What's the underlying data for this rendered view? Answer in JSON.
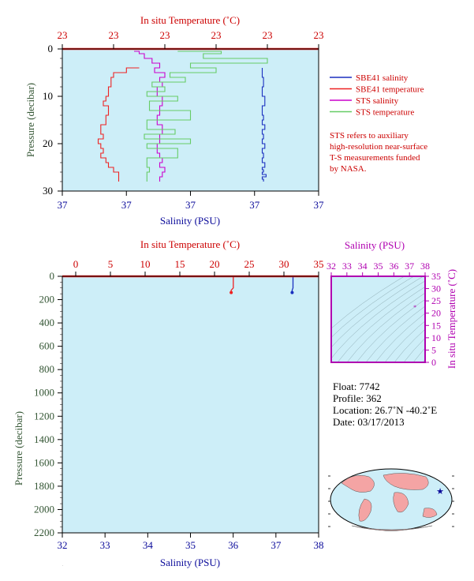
{
  "colors": {
    "panel_bg": "#cdeef8",
    "salinity": "#1a2fbf",
    "temperature": "#ee2222",
    "sts_salinity": "#cc00cc",
    "sts_temperature": "#66cc66",
    "temp_axis": "#cc0000",
    "sal_axis": "#0a0a9a",
    "pressure_axis": "#335533",
    "ts_axis": "#b000b0"
  },
  "top_panel": {
    "title": "In situ Temperature (˚C)",
    "xlabel": "Salinity (PSU)",
    "ylabel": "Pressure (decibar)",
    "temp_ticks": [
      "23",
      "23",
      "23",
      "23",
      "23",
      "23"
    ],
    "sal_ticks": [
      "37",
      "37",
      "37",
      "37",
      "37"
    ],
    "pressure_ticks": [
      "0",
      "10",
      "20",
      "30"
    ]
  },
  "legend": {
    "items": [
      {
        "label": "SBE41 salinity",
        "color": "#1a2fbf"
      },
      {
        "label": "SBE41 temperature",
        "color": "#ee2222"
      },
      {
        "label": "STS salinity",
        "color": "#cc00cc"
      },
      {
        "label": "STS temperature",
        "color": "#66cc66"
      }
    ],
    "note_lines": [
      "STS refers to auxiliary",
      "high-resolution near-surface",
      "T-S measurements funded",
      "by NASA."
    ]
  },
  "bottom_panel": {
    "title": "In situ Temperature (˚C)",
    "xlabel": "Salinity (PSU)",
    "ylabel": "Pressure (decibar)",
    "temp_ticks": [
      "0",
      "5",
      "10",
      "15",
      "20",
      "25",
      "30",
      "35"
    ],
    "sal_ticks": [
      "32",
      "33",
      "34",
      "35",
      "36",
      "37",
      "38"
    ],
    "pressure_ticks": [
      "0",
      "200",
      "400",
      "600",
      "800",
      "1000",
      "1200",
      "1400",
      "1600",
      "1800",
      "2000",
      "2200"
    ]
  },
  "ts_panel": {
    "title": "Salinity (PSU)",
    "ylabel": "In situ Temperature (˚C)",
    "sal_ticks": [
      "32",
      "33",
      "34",
      "35",
      "36",
      "37",
      "38"
    ],
    "temp_ticks": [
      "0",
      "5",
      "10",
      "15",
      "20",
      "25",
      "30",
      "35"
    ]
  },
  "info": {
    "float": "Float:  7742",
    "profile": "Profile:  362",
    "location": "Location:  26.7˚N  -40.2˚E",
    "date": "Date:  03/17/2013"
  },
  "chart_data": [
    {
      "type": "line",
      "panel": "top",
      "ylabel": "Pressure (decibar)",
      "xlabel": "Salinity (PSU)",
      "ylim": [
        30,
        0
      ],
      "series": [
        {
          "name": "SBE41 salinity",
          "x_frac": [
            0.78,
            0.78,
            0.785,
            0.78,
            0.79,
            0.78,
            0.785,
            0.78,
            0.79,
            0.78,
            0.785,
            0.78,
            0.79,
            0.78,
            0.785,
            0.78,
            0.79,
            0.78,
            0.785,
            0.78,
            0.795,
            0.78,
            0.785
          ],
          "pressure": [
            4,
            6,
            8,
            10,
            12,
            14,
            15,
            16,
            17,
            18,
            19,
            20,
            21,
            22,
            23,
            24,
            25,
            25.5,
            26,
            26.5,
            27,
            27.5,
            28
          ]
        },
        {
          "name": "SBE41 temperature",
          "x_frac": [
            0.3,
            0.25,
            0.2,
            0.19,
            0.18,
            0.17,
            0.16,
            0.18,
            0.17,
            0.15,
            0.16,
            0.14,
            0.15,
            0.16,
            0.15,
            0.17,
            0.18,
            0.2,
            0.22
          ],
          "pressure": [
            4,
            5,
            6,
            8,
            10,
            11,
            12,
            14,
            16,
            18,
            19,
            20,
            21,
            22,
            23,
            24,
            25,
            26,
            28
          ]
        },
        {
          "name": "STS salinity",
          "x_frac": [
            0.28,
            0.3,
            0.32,
            0.35,
            0.38,
            0.36,
            0.4,
            0.38,
            0.39,
            0.37,
            0.39,
            0.38,
            0.37,
            0.39,
            0.38,
            0.37,
            0.38,
            0.39,
            0.38,
            0.4,
            0.39,
            0.38
          ],
          "pressure": [
            0.5,
            1,
            2,
            3,
            4,
            5,
            6,
            7,
            8,
            10,
            12,
            14,
            16,
            18,
            20,
            22,
            23,
            24,
            25,
            26,
            27,
            28
          ]
        },
        {
          "name": "STS temperature",
          "x_frac": [
            0.45,
            0.62,
            0.55,
            0.8,
            0.5,
            0.6,
            0.42,
            0.48,
            0.35,
            0.4,
            0.33,
            0.45,
            0.34,
            0.5,
            0.33,
            0.44,
            0.32,
            0.5,
            0.33,
            0.45,
            0.33,
            0.34,
            0.33
          ],
          "pressure": [
            0.5,
            1,
            2,
            3,
            4,
            5,
            6,
            7,
            8,
            9,
            10,
            11,
            13,
            15,
            17,
            18,
            19,
            20,
            21,
            23,
            25,
            26,
            28
          ]
        }
      ]
    },
    {
      "type": "line",
      "panel": "bottom",
      "xlabel": "Salinity (PSU)",
      "ylabel": "Pressure (decibar)",
      "xlim": [
        32,
        38
      ],
      "ylim": [
        2200,
        0
      ],
      "temp_lim": [
        0,
        35
      ],
      "series": [
        {
          "name": "salinity",
          "salinity": [
            37.4,
            37.4,
            37.38,
            37.38
          ],
          "pressure": [
            0,
            100,
            120,
            140
          ]
        },
        {
          "name": "temperature",
          "temperature": [
            22.7,
            22.7,
            22.4,
            22.4
          ],
          "pressure": [
            0,
            100,
            120,
            140
          ]
        }
      ]
    },
    {
      "type": "scatter",
      "panel": "ts",
      "xlabel": "Salinity (PSU)",
      "ylabel": "In situ Temperature (˚C)",
      "xlim": [
        32,
        38
      ],
      "ylim": [
        0,
        35
      ],
      "points": [
        {
          "salinity": 37.35,
          "temperature": 22.5
        }
      ]
    }
  ]
}
